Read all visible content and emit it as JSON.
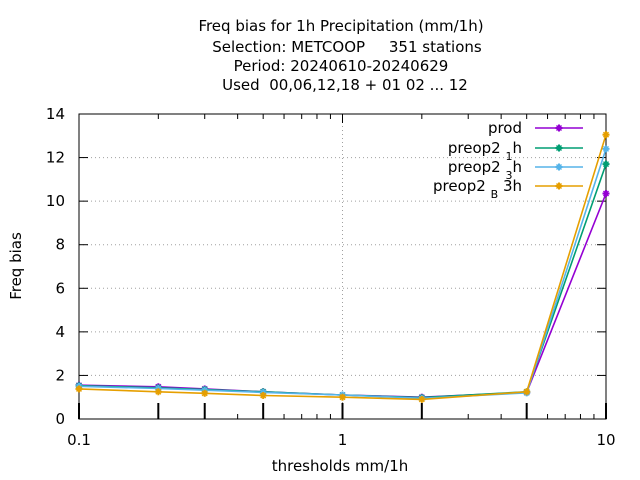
{
  "chart_data": {
    "type": "line",
    "title_lines": [
      "Freq bias  for 1h Precipitation (mm/1h)",
      "Selection: METCOOP     351 stations",
      "Period: 20240610-20240629",
      "Used  00,06,12,18 + 01 02 ... 12"
    ],
    "xlabel": "thresholds mm/1h",
    "ylabel": "Freq bias",
    "x_scale": "log",
    "xlim": [
      0.1,
      10
    ],
    "ylim": [
      0,
      14
    ],
    "x_ticks": [
      {
        "value": 0.1,
        "label": "0.1"
      },
      {
        "value": 1,
        "label": "1"
      },
      {
        "value": 10,
        "label": "10"
      }
    ],
    "y_ticks": [
      {
        "value": 0,
        "label": "0"
      },
      {
        "value": 2,
        "label": "2"
      },
      {
        "value": 4,
        "label": "4"
      },
      {
        "value": 6,
        "label": "6"
      },
      {
        "value": 8,
        "label": "8"
      },
      {
        "value": 10,
        "label": "10"
      },
      {
        "value": 12,
        "label": "12"
      },
      {
        "value": 14,
        "label": "14"
      }
    ],
    "grid": true,
    "legend_position": "top-right",
    "x": [
      0.1,
      0.2,
      0.3,
      0.5,
      1,
      2,
      5,
      10
    ],
    "series": [
      {
        "name": "prod",
        "legend_parts": [
          "prod",
          "",
          ""
        ],
        "color": "#9400d3",
        "values": [
          1.55,
          1.48,
          1.38,
          1.25,
          1.1,
          1.0,
          1.22,
          10.35
        ]
      },
      {
        "name": "preop2 1 h",
        "legend_parts": [
          "preop2 ",
          "1",
          "h"
        ],
        "color": "#009e73",
        "values": [
          1.53,
          1.43,
          1.35,
          1.25,
          1.1,
          0.98,
          1.25,
          11.7
        ]
      },
      {
        "name": "preop2 3 h",
        "legend_parts": [
          "preop2 ",
          "3",
          "h"
        ],
        "color": "#56b4e9",
        "values": [
          1.5,
          1.4,
          1.32,
          1.22,
          1.1,
          0.95,
          1.2,
          12.4
        ]
      },
      {
        "name": "preop2 B 3h",
        "legend_parts": [
          "preop2 ",
          "B",
          " 3h"
        ],
        "color": "#e69f00",
        "values": [
          1.38,
          1.25,
          1.18,
          1.08,
          1.0,
          0.9,
          1.25,
          13.05
        ]
      }
    ]
  }
}
